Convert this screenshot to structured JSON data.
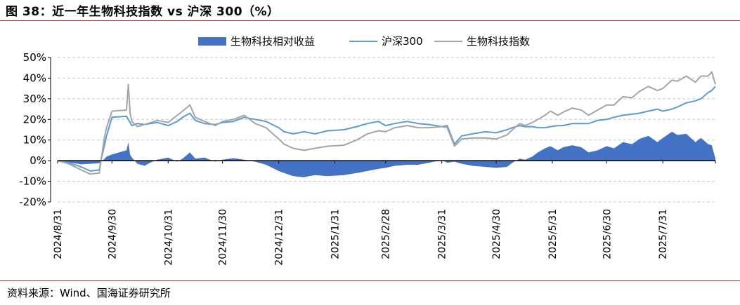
{
  "figure_title": "图 38：近一年生物科技指数 vs 沪深 300（%）",
  "source_note": "资料来源：Wind、国海证券研究所",
  "chart_data": {
    "type": "line",
    "title": "",
    "xlabel": "",
    "ylabel": "",
    "ylim": [
      -20,
      50
    ],
    "yticks": [
      "50%",
      "40%",
      "30%",
      "20%",
      "10%",
      "0%",
      "-10%",
      "-20%"
    ],
    "ytick_values": [
      50,
      40,
      30,
      20,
      10,
      0,
      -10,
      -20
    ],
    "xticks": [
      "2024/8/31",
      "2024/9/30",
      "2024/10/31",
      "2024/11/30",
      "2024/12/31",
      "2025/1/31",
      "2025/2/28",
      "2025/3/31",
      "2025/4/30",
      "2025/5/31",
      "2025/6/30",
      "2025/7/31"
    ],
    "xtick_dates": [
      "2024-08-31",
      "2024-09-30",
      "2024-10-31",
      "2024-11-30",
      "2024-12-31",
      "2025-01-31",
      "2025-02-28",
      "2025-03-31",
      "2025-04-30",
      "2025-05-31",
      "2025-06-30",
      "2025-07-31"
    ],
    "x_range": [
      "2024-08-31",
      "2025-08-29"
    ],
    "grid": "horizontal-dashed",
    "legend_position": "top-center",
    "series": [
      {
        "name": "生物科技相对收益",
        "style": "area",
        "color": "#4472c4",
        "points": [
          [
            "2024-08-31",
            0
          ],
          [
            "2024-09-06",
            -0.8
          ],
          [
            "2024-09-13",
            -1.8
          ],
          [
            "2024-09-18",
            -1.5
          ],
          [
            "2024-09-23",
            -1.2
          ],
          [
            "2024-09-26",
            1.0
          ],
          [
            "2024-09-27",
            2.0
          ],
          [
            "2024-09-30",
            3.0
          ],
          [
            "2024-10-08",
            5.0
          ],
          [
            "2024-10-09",
            9.0
          ],
          [
            "2024-10-10",
            3.0
          ],
          [
            "2024-10-11",
            1.5
          ],
          [
            "2024-10-14",
            -1.5
          ],
          [
            "2024-10-18",
            -2.5
          ],
          [
            "2024-10-21",
            -1.0
          ],
          [
            "2024-10-25",
            0.5
          ],
          [
            "2024-10-31",
            1.5
          ],
          [
            "2024-11-05",
            -0.5
          ],
          [
            "2024-11-08",
            1.0
          ],
          [
            "2024-11-12",
            4.0
          ],
          [
            "2024-11-15",
            1.0
          ],
          [
            "2024-11-20",
            1.5
          ],
          [
            "2024-11-26",
            -0.5
          ],
          [
            "2024-11-30",
            0.5
          ],
          [
            "2024-12-06",
            1.2
          ],
          [
            "2024-12-12",
            0.5
          ],
          [
            "2024-12-18",
            -0.5
          ],
          [
            "2024-12-24",
            -2.0
          ],
          [
            "2024-12-31",
            -5.0
          ],
          [
            "2025-01-03",
            -6.0
          ],
          [
            "2025-01-08",
            -7.5
          ],
          [
            "2025-01-14",
            -8.0
          ],
          [
            "2025-01-20",
            -7.0
          ],
          [
            "2025-01-27",
            -7.5
          ],
          [
            "2025-02-05",
            -7.0
          ],
          [
            "2025-02-12",
            -6.0
          ],
          [
            "2025-02-18",
            -5.0
          ],
          [
            "2025-02-24",
            -4.0
          ],
          [
            "2025-02-28",
            -3.5
          ],
          [
            "2025-03-05",
            -2.5
          ],
          [
            "2025-03-12",
            -2.0
          ],
          [
            "2025-03-18",
            -2.0
          ],
          [
            "2025-03-24",
            -1.0
          ],
          [
            "2025-03-31",
            0.3
          ],
          [
            "2025-04-03",
            -1.0
          ],
          [
            "2025-04-07",
            -0.5
          ],
          [
            "2025-04-11",
            -1.5
          ],
          [
            "2025-04-17",
            -2.5
          ],
          [
            "2025-04-24",
            -3.0
          ],
          [
            "2025-04-30",
            -3.5
          ],
          [
            "2025-05-06",
            -3.0
          ],
          [
            "2025-05-09",
            -1.0
          ],
          [
            "2025-05-13",
            1.0
          ],
          [
            "2025-05-16",
            0.5
          ],
          [
            "2025-05-20",
            2.0
          ],
          [
            "2025-05-23",
            4.0
          ],
          [
            "2025-05-27",
            6.0
          ],
          [
            "2025-05-30",
            7.0
          ],
          [
            "2025-06-03",
            5.0
          ],
          [
            "2025-06-06",
            6.5
          ],
          [
            "2025-06-11",
            7.5
          ],
          [
            "2025-06-16",
            6.5
          ],
          [
            "2025-06-20",
            4.0
          ],
          [
            "2025-06-25",
            5.0
          ],
          [
            "2025-06-30",
            7.0
          ],
          [
            "2025-07-04",
            6.0
          ],
          [
            "2025-07-09",
            9.0
          ],
          [
            "2025-07-14",
            8.0
          ],
          [
            "2025-07-18",
            10.5
          ],
          [
            "2025-07-23",
            12.0
          ],
          [
            "2025-07-28",
            9.0
          ],
          [
            "2025-07-31",
            11.0
          ],
          [
            "2025-08-05",
            14.0
          ],
          [
            "2025-08-08",
            12.5
          ],
          [
            "2025-08-13",
            13.0
          ],
          [
            "2025-08-18",
            9.0
          ],
          [
            "2025-08-21",
            11.0
          ],
          [
            "2025-08-25",
            8.0
          ],
          [
            "2025-08-27",
            7.5
          ],
          [
            "2025-08-29",
            1.0
          ]
        ]
      },
      {
        "name": "沪深300",
        "style": "line",
        "color": "#5b9bd5",
        "points": [
          [
            "2024-08-31",
            0
          ],
          [
            "2024-09-06",
            -1.0
          ],
          [
            "2024-09-13",
            -3.0
          ],
          [
            "2024-09-18",
            -5.0
          ],
          [
            "2024-09-23",
            -4.5
          ],
          [
            "2024-09-24",
            0.5
          ],
          [
            "2024-09-26",
            8.0
          ],
          [
            "2024-09-27",
            12.0
          ],
          [
            "2024-09-30",
            21.0
          ],
          [
            "2024-10-08",
            21.5
          ],
          [
            "2024-10-09",
            20.0
          ],
          [
            "2024-10-11",
            17.0
          ],
          [
            "2024-10-14",
            18.0
          ],
          [
            "2024-10-18",
            17.5
          ],
          [
            "2024-10-25",
            18.5
          ],
          [
            "2024-10-31",
            17.0
          ],
          [
            "2024-11-05",
            19.0
          ],
          [
            "2024-11-08",
            21.0
          ],
          [
            "2024-11-12",
            23.0
          ],
          [
            "2024-11-15",
            19.5
          ],
          [
            "2024-11-20",
            18.0
          ],
          [
            "2024-11-26",
            17.5
          ],
          [
            "2024-11-30",
            18.5
          ],
          [
            "2024-12-06",
            19.0
          ],
          [
            "2024-12-12",
            21.0
          ],
          [
            "2024-12-18",
            20.0
          ],
          [
            "2024-12-24",
            19.0
          ],
          [
            "2024-12-31",
            16.0
          ],
          [
            "2025-01-03",
            14.0
          ],
          [
            "2025-01-08",
            13.0
          ],
          [
            "2025-01-14",
            14.0
          ],
          [
            "2025-01-20",
            13.0
          ],
          [
            "2025-01-27",
            14.5
          ],
          [
            "2025-02-05",
            15.0
          ],
          [
            "2025-02-12",
            16.5
          ],
          [
            "2025-02-18",
            18.0
          ],
          [
            "2025-02-24",
            19.0
          ],
          [
            "2025-02-28",
            17.0
          ],
          [
            "2025-03-05",
            18.0
          ],
          [
            "2025-03-12",
            19.0
          ],
          [
            "2025-03-18",
            18.0
          ],
          [
            "2025-03-24",
            17.5
          ],
          [
            "2025-03-31",
            16.5
          ],
          [
            "2025-04-03",
            17.0
          ],
          [
            "2025-04-07",
            8.0
          ],
          [
            "2025-04-11",
            12.0
          ],
          [
            "2025-04-17",
            13.0
          ],
          [
            "2025-04-24",
            14.0
          ],
          [
            "2025-04-30",
            13.5
          ],
          [
            "2025-05-06",
            15.0
          ],
          [
            "2025-05-09",
            16.0
          ],
          [
            "2025-05-13",
            17.0
          ],
          [
            "2025-05-16",
            16.5
          ],
          [
            "2025-05-20",
            16.5
          ],
          [
            "2025-05-23",
            16.0
          ],
          [
            "2025-05-27",
            16.0
          ],
          [
            "2025-05-30",
            16.5
          ],
          [
            "2025-06-03",
            17.0
          ],
          [
            "2025-06-06",
            17.0
          ],
          [
            "2025-06-11",
            18.0
          ],
          [
            "2025-06-16",
            18.0
          ],
          [
            "2025-06-20",
            18.0
          ],
          [
            "2025-06-25",
            19.5
          ],
          [
            "2025-06-30",
            20.0
          ],
          [
            "2025-07-04",
            21.0
          ],
          [
            "2025-07-09",
            22.0
          ],
          [
            "2025-07-14",
            22.5
          ],
          [
            "2025-07-18",
            23.0
          ],
          [
            "2025-07-23",
            24.0
          ],
          [
            "2025-07-28",
            25.0
          ],
          [
            "2025-07-31",
            24.0
          ],
          [
            "2025-08-05",
            25.0
          ],
          [
            "2025-08-08",
            26.0
          ],
          [
            "2025-08-13",
            28.0
          ],
          [
            "2025-08-18",
            29.0
          ],
          [
            "2025-08-21",
            30.0
          ],
          [
            "2025-08-25",
            33.0
          ],
          [
            "2025-08-27",
            34.0
          ],
          [
            "2025-08-29",
            36.0
          ]
        ]
      },
      {
        "name": "生物科技指数",
        "style": "line",
        "color": "#a5a5a5",
        "points": [
          [
            "2024-08-31",
            0
          ],
          [
            "2024-09-06",
            -1.5
          ],
          [
            "2024-09-13",
            -4.5
          ],
          [
            "2024-09-18",
            -6.5
          ],
          [
            "2024-09-23",
            -6.0
          ],
          [
            "2024-09-24",
            0.5
          ],
          [
            "2024-09-26",
            12.0
          ],
          [
            "2024-09-27",
            16.0
          ],
          [
            "2024-09-30",
            24.0
          ],
          [
            "2024-10-08",
            24.5
          ],
          [
            "2024-10-09",
            37.0
          ],
          [
            "2024-10-10",
            23.0
          ],
          [
            "2024-10-11",
            19.0
          ],
          [
            "2024-10-14",
            16.5
          ],
          [
            "2024-10-18",
            17.5
          ],
          [
            "2024-10-25",
            19.5
          ],
          [
            "2024-10-31",
            18.5
          ],
          [
            "2024-11-05",
            22.0
          ],
          [
            "2024-11-08",
            24.0
          ],
          [
            "2024-11-12",
            27.0
          ],
          [
            "2024-11-15",
            21.0
          ],
          [
            "2024-11-20",
            19.0
          ],
          [
            "2024-11-26",
            17.0
          ],
          [
            "2024-11-30",
            19.0
          ],
          [
            "2024-12-06",
            20.0
          ],
          [
            "2024-12-12",
            22.0
          ],
          [
            "2024-12-18",
            18.0
          ],
          [
            "2024-12-24",
            16.0
          ],
          [
            "2024-12-31",
            10.5
          ],
          [
            "2025-01-03",
            8.0
          ],
          [
            "2025-01-08",
            6.0
          ],
          [
            "2025-01-14",
            5.0
          ],
          [
            "2025-01-20",
            6.0
          ],
          [
            "2025-01-27",
            7.0
          ],
          [
            "2025-02-05",
            7.5
          ],
          [
            "2025-02-12",
            10.0
          ],
          [
            "2025-02-18",
            13.0
          ],
          [
            "2025-02-24",
            14.5
          ],
          [
            "2025-02-28",
            14.0
          ],
          [
            "2025-03-05",
            16.0
          ],
          [
            "2025-03-12",
            17.0
          ],
          [
            "2025-03-18",
            16.0
          ],
          [
            "2025-03-24",
            16.0
          ],
          [
            "2025-03-31",
            16.5
          ],
          [
            "2025-04-03",
            16.0
          ],
          [
            "2025-04-07",
            7.0
          ],
          [
            "2025-04-11",
            10.5
          ],
          [
            "2025-04-17",
            11.0
          ],
          [
            "2025-04-24",
            11.0
          ],
          [
            "2025-04-30",
            10.5
          ],
          [
            "2025-05-06",
            12.5
          ],
          [
            "2025-05-09",
            15.0
          ],
          [
            "2025-05-13",
            18.0
          ],
          [
            "2025-05-16",
            17.0
          ],
          [
            "2025-05-20",
            18.5
          ],
          [
            "2025-05-23",
            20.0
          ],
          [
            "2025-05-27",
            22.0
          ],
          [
            "2025-05-30",
            24.0
          ],
          [
            "2025-06-03",
            22.0
          ],
          [
            "2025-06-06",
            23.5
          ],
          [
            "2025-06-11",
            25.5
          ],
          [
            "2025-06-16",
            24.5
          ],
          [
            "2025-06-20",
            22.0
          ],
          [
            "2025-06-25",
            24.5
          ],
          [
            "2025-06-30",
            27.0
          ],
          [
            "2025-07-04",
            27.0
          ],
          [
            "2025-07-09",
            31.0
          ],
          [
            "2025-07-14",
            30.5
          ],
          [
            "2025-07-18",
            33.5
          ],
          [
            "2025-07-23",
            36.0
          ],
          [
            "2025-07-28",
            34.0
          ],
          [
            "2025-07-31",
            35.0
          ],
          [
            "2025-08-05",
            39.0
          ],
          [
            "2025-08-08",
            38.5
          ],
          [
            "2025-08-13",
            41.0
          ],
          [
            "2025-08-18",
            38.0
          ],
          [
            "2025-08-21",
            41.0
          ],
          [
            "2025-08-25",
            41.0
          ],
          [
            "2025-08-27",
            43.0
          ],
          [
            "2025-08-29",
            37.0
          ]
        ]
      }
    ]
  }
}
